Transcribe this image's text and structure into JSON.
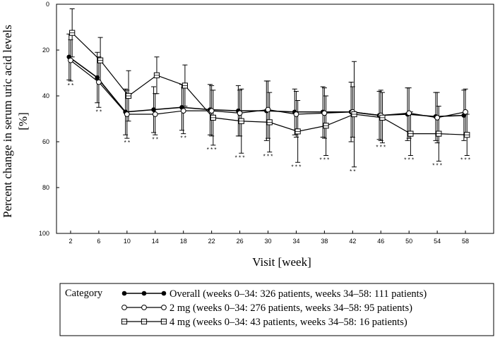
{
  "chart_data": {
    "type": "line",
    "title": "",
    "xlabel": "Visit [week]",
    "ylabel": "Percent change in serum uric acid levels",
    "ylabel_unit": "[%]",
    "x": [
      2,
      6,
      10,
      14,
      18,
      22,
      26,
      30,
      34,
      38,
      42,
      46,
      50,
      54,
      58
    ],
    "x_tick_labels": [
      "2",
      "6",
      "10",
      "14",
      "18",
      "22",
      "26",
      "30",
      "34",
      "38",
      "42",
      "46",
      "50",
      "54",
      "58"
    ],
    "ylim": [
      0,
      100
    ],
    "y_inverted": true,
    "y_ticks": [
      0,
      20,
      40,
      60,
      80,
      100
    ],
    "y_tick_labels": [
      "0",
      "20",
      "40",
      "60",
      "80",
      "100"
    ],
    "grid": false,
    "legend_title": "Category",
    "legend_position": "bottom",
    "series": [
      {
        "name": "Overall (weeks 0–34: 326 patients, weeks 34–58: 111 patients)",
        "marker": "filled-circle",
        "values": [
          23,
          32,
          47,
          46,
          45,
          46,
          46.5,
          46.5,
          47,
          47,
          47,
          48.5,
          48,
          49,
          48.5
        ],
        "sd": [
          10,
          11,
          10,
          10,
          10,
          11,
          11,
          13,
          10,
          11,
          13,
          10.5,
          11.5,
          10.5,
          11
        ]
      },
      {
        "name": "2 mg (weeks 0–34: 276 patients, weeks 34–58: 95 patients)",
        "marker": "open-circle",
        "values": [
          24.5,
          34,
          48,
          48,
          46.5,
          46.5,
          47.5,
          46,
          48,
          47.5,
          47,
          48.5,
          47.5,
          49.5,
          47
        ],
        "sd": [
          9,
          11,
          10.5,
          9,
          10,
          11,
          10,
          12.5,
          10,
          11,
          11,
          11,
          11,
          11,
          10
        ]
      },
      {
        "name": "4 mg (weeks 0–34: 43 patients, weeks 34–58: 16 patients)",
        "marker": "open-square",
        "values": [
          12.5,
          24.5,
          40,
          31,
          35.5,
          49.5,
          51,
          51.5,
          55.5,
          53,
          48,
          49.5,
          56.5,
          56.5,
          57
        ],
        "sd": [
          10.5,
          10,
          11,
          8,
          9,
          12,
          14,
          13,
          13.5,
          13,
          23,
          11,
          9.5,
          12,
          9
        ]
      }
    ],
    "annotations": [
      {
        "x": 2,
        "label": "* *"
      },
      {
        "x": 6,
        "label": "* *"
      },
      {
        "x": 10,
        "label": "* *"
      },
      {
        "x": 14,
        "label": "* *"
      },
      {
        "x": 18,
        "label": "* *"
      },
      {
        "x": 22,
        "label": "* * *"
      },
      {
        "x": 26,
        "label": "* * *"
      },
      {
        "x": 30,
        "label": "* * *"
      },
      {
        "x": 34,
        "label": "* * *"
      },
      {
        "x": 38,
        "label": "* * *"
      },
      {
        "x": 42,
        "label": "* *"
      },
      {
        "x": 46,
        "label": "* * *"
      },
      {
        "x": 50,
        "label": "* * *"
      },
      {
        "x": 54,
        "label": "* * *"
      },
      {
        "x": 58,
        "label": "* * *"
      }
    ]
  }
}
